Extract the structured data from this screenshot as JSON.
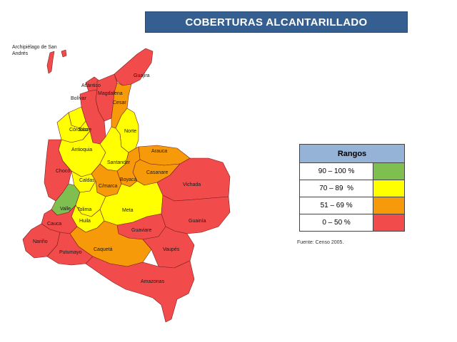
{
  "title": "COBERTURAS ALCANTARILLADO",
  "archipelago_label": "Archipiélago de San Andrés",
  "colors": {
    "green": "#7ebf4f",
    "yellow": "#ffff00",
    "orange": "#f79a0a",
    "red": "#f24b4b",
    "title_bg": "#355f91",
    "legend_header": "#95b3d7"
  },
  "legend": {
    "header": "Rangos",
    "rows": [
      {
        "range": "90 – 100 %",
        "color": "#7ebf4f"
      },
      {
        "range": "70 – 89  %",
        "color": "#ffff00"
      },
      {
        "range": "51 – 69 %",
        "color": "#f79a0a"
      },
      {
        "range": "0 – 50 %",
        "color": "#f24b4b"
      }
    ]
  },
  "source": "Fuente: Censo 2005.",
  "departments": [
    {
      "name": "Guajira",
      "range": "0 – 50 %"
    },
    {
      "name": "Atlántico",
      "range": "0 – 50 %"
    },
    {
      "name": "Magdalena",
      "range": "0 – 50 %"
    },
    {
      "name": "Cesar",
      "range": "51 – 69 %"
    },
    {
      "name": "Bolívar",
      "range": "0 – 50 %"
    },
    {
      "name": "Sucre",
      "range": "70 – 89 %"
    },
    {
      "name": "Córdoba",
      "range": "70 – 89 %"
    },
    {
      "name": "Norte",
      "range": "70 – 89 %"
    },
    {
      "name": "Antioquia",
      "range": "70 – 89 %"
    },
    {
      "name": "Santander",
      "range": "70 – 89 %"
    },
    {
      "name": "Arauca",
      "range": "51 – 69 %"
    },
    {
      "name": "Casanare",
      "range": "51 – 69 %"
    },
    {
      "name": "Boyacá",
      "range": "51 – 69 %"
    },
    {
      "name": "Chocó",
      "range": "0 – 50 %"
    },
    {
      "name": "Caldas",
      "range": "70 – 89 %"
    },
    {
      "name": "C/marca",
      "range": "51 – 69 %"
    },
    {
      "name": "Valle",
      "range": "90 – 100 %"
    },
    {
      "name": "Tolima",
      "range": "70 – 89 %"
    },
    {
      "name": "Meta",
      "range": "70 – 89 %"
    },
    {
      "name": "Vichada",
      "range": "0 – 50 %"
    },
    {
      "name": "Huila",
      "range": "70 – 89 %"
    },
    {
      "name": "Cauca",
      "range": "0 – 50 %"
    },
    {
      "name": "Guaviare",
      "range": "0 – 50 %"
    },
    {
      "name": "Guainía",
      "range": "0 – 50 %"
    },
    {
      "name": "Nariño",
      "range": "0 – 50 %"
    },
    {
      "name": "Caquetá",
      "range": "51 – 69 %"
    },
    {
      "name": "Putumayo",
      "range": "0 – 50 %"
    },
    {
      "name": "Vaupés",
      "range": "0 – 50 %"
    },
    {
      "name": "Amazonas",
      "range": "0 – 50 %"
    }
  ]
}
